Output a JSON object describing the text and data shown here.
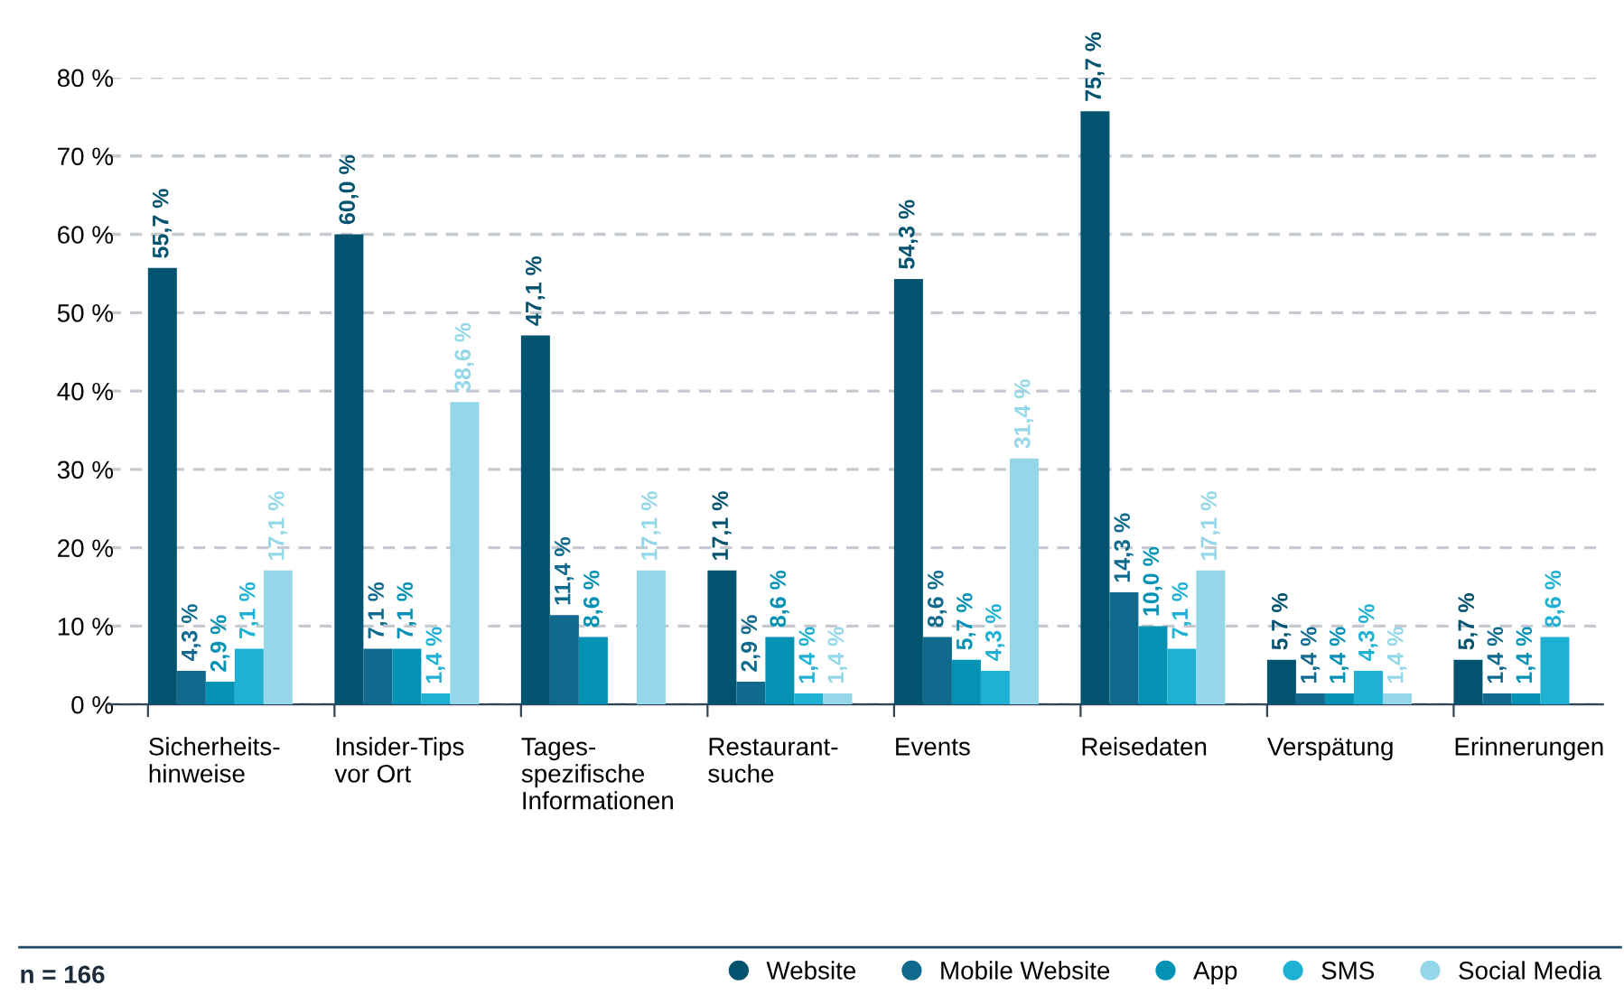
{
  "chart_data": {
    "type": "bar",
    "categories": [
      "Sicherheits-\nhinweise",
      "Insider-Tips\nvor Ort",
      "Tages-\nspezifische\nInformationen",
      "Restaurant-\nsuche",
      "Events",
      "Reisedaten",
      "Verspätung",
      "Erinnerungen"
    ],
    "series": [
      {
        "name": "Website",
        "color": "#02536f",
        "values": [
          55.7,
          60.0,
          47.1,
          17.1,
          54.3,
          75.7,
          5.7,
          5.7
        ],
        "value_labels": [
          "55,7 %",
          "60,0 %",
          "47,1 %",
          "17,1 %",
          "54,3 %",
          "75,7 %",
          "5,7 %",
          "5,7 %"
        ]
      },
      {
        "name": "Mobile Website",
        "color": "#0f6a8e",
        "values": [
          4.3,
          7.1,
          11.4,
          2.9,
          8.6,
          14.3,
          1.4,
          1.4
        ],
        "value_labels": [
          "4,3 %",
          "7,1 %",
          "11,4 %",
          "2,9 %",
          "8,6 %",
          "14,3 %",
          "1,4 %",
          "1,4 %"
        ]
      },
      {
        "name": "App",
        "color": "#0391b4",
        "values": [
          2.9,
          7.1,
          8.6,
          8.6,
          5.7,
          10.0,
          1.4,
          1.4
        ],
        "value_labels": [
          "2,9 %",
          "7,1 %",
          "8,6 %",
          "8,6 %",
          "5,7 %",
          "10,0 %",
          "1,4 %",
          "1,4 %"
        ]
      },
      {
        "name": "SMS",
        "color": "#1fb1d4",
        "values": [
          7.1,
          1.4,
          null,
          1.4,
          4.3,
          7.1,
          4.3,
          8.6
        ],
        "value_labels": [
          "7,1 %",
          "1,4 %",
          null,
          "1,4 %",
          "4,3 %",
          "7,1 %",
          "4,3 %",
          "8,6 %"
        ]
      },
      {
        "name": "Social Media",
        "color": "#93d7e8",
        "values": [
          17.1,
          38.6,
          17.1,
          1.4,
          31.4,
          17.1,
          1.4,
          null
        ],
        "value_labels": [
          "17,1 %",
          "38,6 %",
          "17,1 %",
          "1,4 %",
          "31,4 %",
          "17,1 %",
          "1,4 %",
          null
        ]
      }
    ],
    "ylim": [
      0,
      80
    ],
    "yticks": [
      {
        "value": 0,
        "label": "0 %"
      },
      {
        "value": 10,
        "label": "10 %"
      },
      {
        "value": 20,
        "label": "20 %"
      },
      {
        "value": 30,
        "label": "30 %"
      },
      {
        "value": 40,
        "label": "40 %"
      },
      {
        "value": 50,
        "label": "50 %"
      },
      {
        "value": 60,
        "label": "60 %"
      },
      {
        "value": 70,
        "label": "70 %"
      },
      {
        "value": 80,
        "label": "80 %"
      }
    ],
    "grid": "y",
    "legend": "bottom right",
    "annotations": [
      "n = 166"
    ]
  }
}
